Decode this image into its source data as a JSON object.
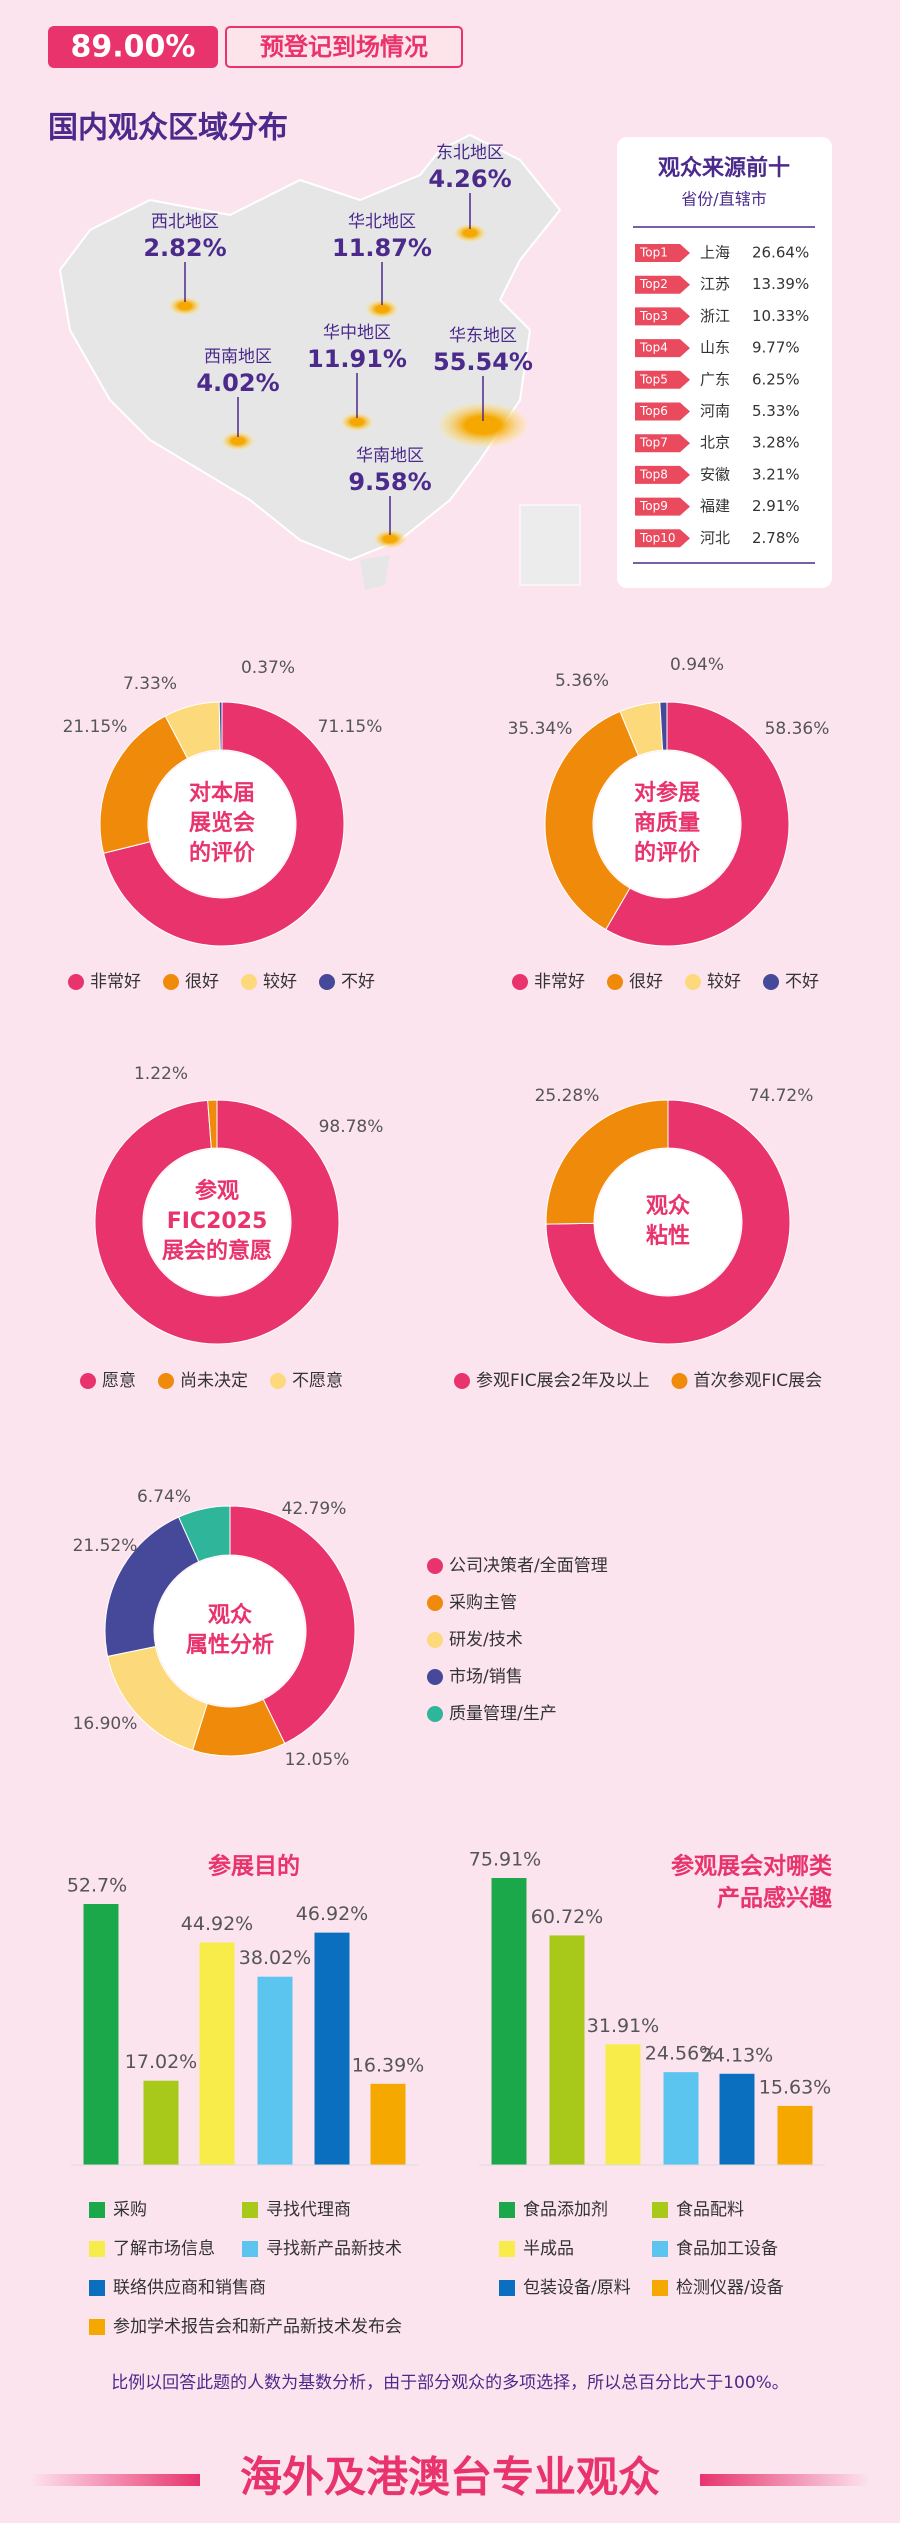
{
  "header": {
    "badge": "89.00%",
    "title": "预登记到场情况"
  },
  "map": {
    "title": "国内观众区域分布",
    "regions": [
      {
        "name": "东北地区",
        "value": "4.26%"
      },
      {
        "name": "西北地区",
        "value": "2.82%"
      },
      {
        "name": "华北地区",
        "value": "11.87%"
      },
      {
        "name": "华中地区",
        "value": "11.91%"
      },
      {
        "name": "西南地区",
        "value": "4.02%"
      },
      {
        "name": "华东地区",
        "value": "55.54%"
      },
      {
        "name": "华南地区",
        "value": "9.58%"
      }
    ]
  },
  "top10": {
    "title": "观众来源前十",
    "subtitle": "省份/直辖市",
    "rows": [
      [
        "Top1",
        "上海",
        "26.64%"
      ],
      [
        "Top2",
        "江苏",
        "13.39%"
      ],
      [
        "Top3",
        "浙江",
        "10.33%"
      ],
      [
        "Top4",
        "山东",
        "9.77%"
      ],
      [
        "Top5",
        "广东",
        "6.25%"
      ],
      [
        "Top6",
        "河南",
        "5.33%"
      ],
      [
        "Top7",
        "北京",
        "3.28%"
      ],
      [
        "Top8",
        "安徽",
        "3.21%"
      ],
      [
        "Top9",
        "福建",
        "2.91%"
      ],
      [
        "Top10",
        "河北",
        "2.78%"
      ]
    ]
  },
  "chart_data": [
    {
      "type": "pie",
      "center_label": [
        "对本届",
        "展览会",
        "的评价"
      ],
      "categories": [
        "非常好",
        "很好",
        "较好",
        "不好"
      ],
      "values": [
        71.15,
        21.15,
        7.33,
        0.37
      ],
      "value_labels": [
        "71.15%",
        "21.15%",
        "7.33%",
        "0.37%"
      ],
      "colors": [
        "#e8336d",
        "#f08a0b",
        "#fcd97a",
        "#46499a"
      ]
    },
    {
      "type": "pie",
      "center_label": [
        "对参展",
        "商质量",
        "的评价"
      ],
      "categories": [
        "非常好",
        "很好",
        "较好",
        "不好"
      ],
      "values": [
        58.36,
        35.34,
        5.36,
        0.94
      ],
      "value_labels": [
        "58.36%",
        "35.34%",
        "5.36%",
        "0.94%"
      ],
      "colors": [
        "#e8336d",
        "#f08a0b",
        "#fcd97a",
        "#46499a"
      ]
    },
    {
      "type": "pie",
      "center_label": [
        "参观",
        "FIC2025",
        "展会的意愿"
      ],
      "categories": [
        "愿意",
        "尚未决定",
        "不愿意"
      ],
      "values": [
        98.78,
        1.22,
        null
      ],
      "value_labels": [
        "98.78%",
        "1.22%",
        null
      ],
      "colors": [
        "#e8336d",
        "#f08a0b",
        "#fcd97a"
      ]
    },
    {
      "type": "pie",
      "center_label": [
        "观众",
        "粘性"
      ],
      "categories": [
        "参观FIC展会2年及以上",
        "首次参观FIC展会"
      ],
      "values": [
        74.72,
        25.28
      ],
      "value_labels": [
        "74.72%",
        "25.28%"
      ],
      "colors": [
        "#e8336d",
        "#f08a0b"
      ]
    },
    {
      "type": "pie",
      "center_label": [
        "观众",
        "属性分析"
      ],
      "categories": [
        "公司决策者/全面管理",
        "采购主管",
        "研发/技术",
        "市场/销售",
        "质量管理/生产"
      ],
      "values": [
        42.79,
        12.05,
        16.9,
        21.52,
        6.74
      ],
      "value_labels": [
        "42.79%",
        "12.05%",
        "16.90%",
        "21.52%",
        "6.74%"
      ],
      "colors": [
        "#e8336d",
        "#f08a0b",
        "#fcd97a",
        "#46499a",
        "#2fb59a"
      ]
    },
    {
      "type": "bar",
      "title": [
        "参展目的"
      ],
      "categories": [
        "采购",
        "寻找代理商",
        "了解市场信息",
        "寻找新产品新技术",
        "联络供应商和销售商",
        "参加学术报告会和新产品新技术发布会"
      ],
      "values": [
        52.7,
        17.02,
        44.92,
        38.02,
        46.92,
        16.39
      ],
      "value_labels": [
        "52.7%",
        "17.02%",
        "44.92%",
        "38.02%",
        "46.92%",
        "16.39%"
      ],
      "colors": [
        "#1aa84a",
        "#a8c81a",
        "#f7ec4a",
        "#5bc4ef",
        "#0b6fbf",
        "#f5a800"
      ]
    },
    {
      "type": "bar",
      "title": [
        "参观展会对哪类",
        "产品感兴趣"
      ],
      "categories": [
        "食品添加剂",
        "食品配料",
        "半成品",
        "食品加工设备",
        "包装设备/原料",
        "检测仪器/设备"
      ],
      "values": [
        75.91,
        60.72,
        31.91,
        24.56,
        24.13,
        15.63
      ],
      "value_labels": [
        "75.91%",
        "60.72%",
        "31.91%",
        "24.56%",
        "24.13%",
        "15.63%"
      ],
      "colors": [
        "#1aa84a",
        "#a8c81a",
        "#f7ec4a",
        "#5bc4ef",
        "#0b6fbf",
        "#f5a800"
      ]
    }
  ],
  "footnote": "比例以回答此题的人数为基数分析，由于部分观众的多项选择，所以总百分比大于100%。",
  "section_title": "海外及港澳台专业观众"
}
